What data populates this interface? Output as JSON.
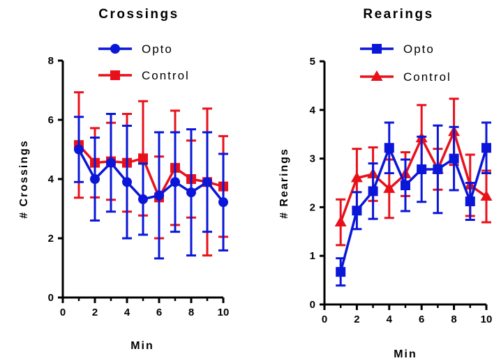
{
  "chart_data": [
    {
      "type": "line",
      "title": "Crossings",
      "xlabel": "Min",
      "ylabel": "# Crossings",
      "xlim": [
        0,
        10
      ],
      "ylim": [
        0,
        8
      ],
      "xticks": [
        "0",
        "2",
        "4",
        "6",
        "8",
        "10"
      ],
      "yticks": [
        "0",
        "2",
        "4",
        "6",
        "8"
      ],
      "legend_position": "top-right",
      "x": [
        1,
        2,
        3,
        4,
        5,
        6,
        7,
        8,
        9,
        10
      ],
      "series": [
        {
          "name": "Opto",
          "color": "#0a16d8",
          "marker": "circle",
          "values": [
            5.0,
            4.0,
            4.55,
            3.9,
            3.32,
            3.45,
            3.9,
            3.55,
            3.9,
            3.22
          ],
          "error": [
            1.1,
            1.4,
            1.65,
            1.9,
            1.2,
            2.13,
            1.68,
            2.13,
            1.68,
            1.63
          ]
        },
        {
          "name": "Control",
          "color": "#e8111b",
          "marker": "square",
          "values": [
            5.15,
            4.55,
            4.6,
            4.55,
            4.7,
            3.38,
            4.38,
            4.0,
            3.9,
            3.75
          ],
          "error": [
            1.78,
            1.17,
            1.3,
            1.65,
            1.93,
            1.38,
            1.93,
            1.3,
            2.48,
            1.7
          ]
        }
      ]
    },
    {
      "type": "line",
      "title": "Rearings",
      "xlabel": "Min",
      "ylabel": "# Rearings",
      "xlim": [
        0,
        10
      ],
      "ylim": [
        0,
        5
      ],
      "xticks": [
        "0",
        "2",
        "4",
        "6",
        "8",
        "10"
      ],
      "yticks": [
        "0",
        "1",
        "2",
        "3",
        "4",
        "5"
      ],
      "legend_position": "top-right",
      "x": [
        1,
        2,
        3,
        4,
        5,
        6,
        7,
        8,
        9,
        10
      ],
      "series": [
        {
          "name": "Opto",
          "color": "#0a16d8",
          "marker": "square",
          "values": [
            0.67,
            1.93,
            2.33,
            3.22,
            2.45,
            2.78,
            2.78,
            3.0,
            2.12,
            3.22
          ],
          "error": [
            0.28,
            0.38,
            0.57,
            0.52,
            0.53,
            0.67,
            0.9,
            0.65,
            0.38,
            0.52
          ]
        },
        {
          "name": "Control",
          "color": "#e8111b",
          "marker": "triangle",
          "values": [
            1.69,
            2.6,
            2.68,
            2.38,
            2.68,
            3.42,
            2.78,
            3.55,
            2.45,
            2.22
          ],
          "error": [
            0.47,
            0.6,
            0.55,
            0.6,
            0.45,
            0.68,
            0.42,
            0.68,
            0.63,
            0.53
          ]
        }
      ]
    }
  ]
}
